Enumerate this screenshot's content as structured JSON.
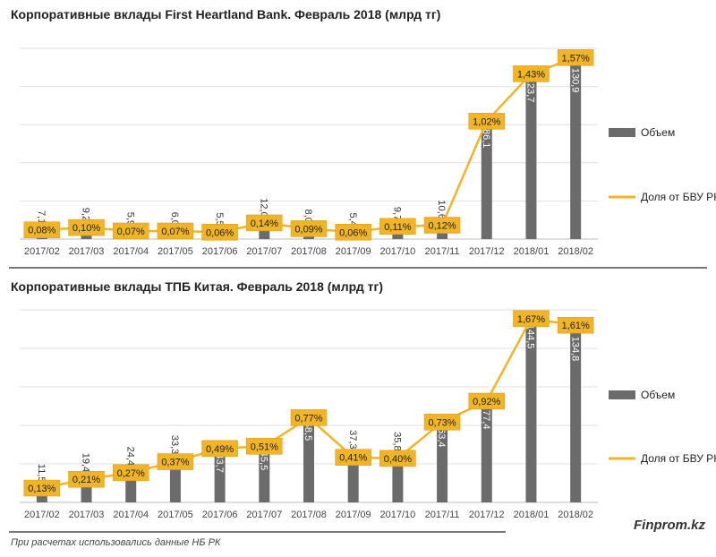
{
  "chart_data": [
    {
      "type": "bar",
      "title": "Корпоративные  вклады First Heartland Bank. Февраль 2018 (млрд тг)",
      "categories": [
        "2017/02",
        "2017/03",
        "2017/04",
        "2017/05",
        "2017/06",
        "2017/07",
        "2017/08",
        "2017/09",
        "2017/10",
        "2017/11",
        "2017/12",
        "2018/01",
        "2018/02"
      ],
      "series": [
        {
          "name": "Объем",
          "kind": "bar",
          "values": [
            7.1,
            9.2,
            5.9,
            6.0,
            5.5,
            12.0,
            8.0,
            5.4,
            9.7,
            10.6,
            86.1,
            123.7,
            130.9
          ],
          "labels": [
            "7,1",
            "9,2",
            "5,9",
            "6,0",
            "5,5",
            "12,0",
            "8,0",
            "5,4",
            "9,7",
            "10,6",
            "86,1",
            "123,7",
            "130,9"
          ]
        },
        {
          "name": "Доля от БВУ РК",
          "kind": "line",
          "values": [
            0.08,
            0.1,
            0.07,
            0.07,
            0.06,
            0.14,
            0.09,
            0.06,
            0.11,
            0.12,
            1.02,
            1.43,
            1.57
          ],
          "labels": [
            "0,08%",
            "0,10%",
            "0,07%",
            "0,07%",
            "0,06%",
            "0,14%",
            "0,09%",
            "0,06%",
            "0,11%",
            "0,12%",
            "1,02%",
            "1,43%",
            "1,57%"
          ]
        }
      ],
      "ylim_bar": [
        0,
        140
      ],
      "ylim_line": [
        0,
        1.65
      ],
      "legend_position": "right",
      "grid": true
    },
    {
      "type": "bar",
      "title": "Корпоративные вклады ТПБ Китая. Февраль 2018  (млрд  тг)",
      "categories": [
        "2017/02",
        "2017/03",
        "2017/04",
        "2017/05",
        "2017/06",
        "2017/07",
        "2017/08",
        "2017/09",
        "2017/10",
        "2017/11",
        "2017/12",
        "2018/01",
        "2018/02"
      ],
      "series": [
        {
          "name": "Объем",
          "kind": "bar",
          "values": [
            11.5,
            19.4,
            24.4,
            33.3,
            43.7,
            45.5,
            68.5,
            37.3,
            35.8,
            63.4,
            77.4,
            144.5,
            134.8
          ],
          "labels": [
            "11,5",
            "19,4",
            "24,4",
            "33,3",
            "43,7",
            "45,5",
            "68,5",
            "37,3",
            "35,8",
            "63,4",
            "77,4",
            "144,5",
            "134,8"
          ]
        },
        {
          "name": "Доля от БВУ РК",
          "kind": "line",
          "values": [
            0.13,
            0.21,
            0.27,
            0.37,
            0.49,
            0.51,
            0.77,
            0.41,
            0.4,
            0.73,
            0.92,
            1.67,
            1.61
          ],
          "labels": [
            "0,13%",
            "0,21%",
            "0,27%",
            "0,37%",
            "0,49%",
            "0,51%",
            "0,77%",
            "0,41%",
            "0,40%",
            "0,73%",
            "0,92%",
            "1,67%",
            "1,61%"
          ]
        }
      ],
      "ylim_bar": [
        0,
        150
      ],
      "ylim_line": [
        0,
        1.75
      ],
      "legend_position": "right",
      "grid": true
    }
  ],
  "colors": {
    "bar": "#6b6b6b",
    "line": "#f0b429",
    "label_box": "#f0b429",
    "grid": "#e0e0e0"
  },
  "footer": {
    "note": "При расчетах использовались данные НБ РК",
    "brand": "Finprom.kz"
  }
}
